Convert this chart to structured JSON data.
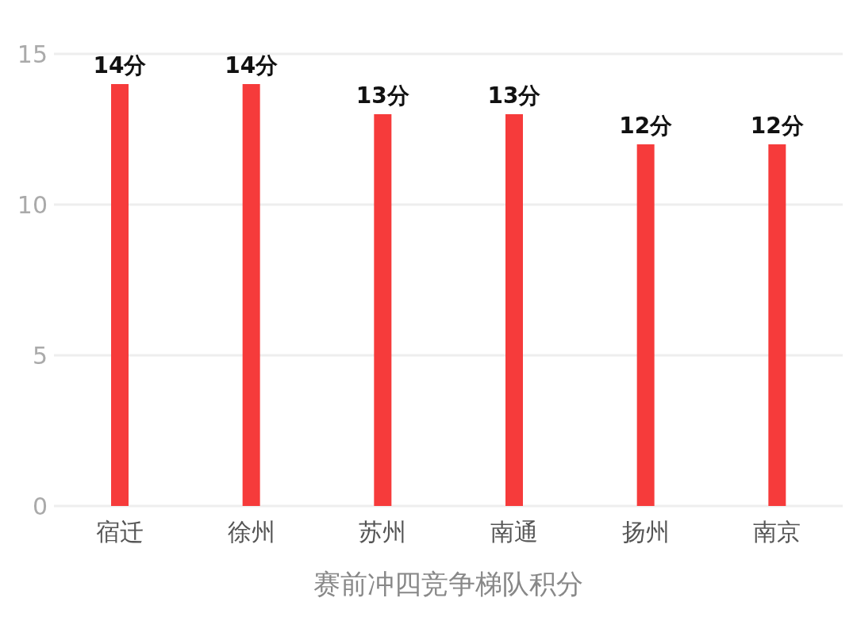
{
  "chart_data": {
    "type": "bar",
    "xlabel": "赛前冲四竞争梯队积分",
    "categories": [
      "宿迁",
      "徐州",
      "苏州",
      "南通",
      "扬州",
      "南京"
    ],
    "values": [
      14,
      14,
      13,
      13,
      12,
      12
    ],
    "value_labels": [
      "14分",
      "14分",
      "13分",
      "13分",
      "12分",
      "12分"
    ],
    "color": "#f63b3b",
    "ylim": [
      0,
      15
    ],
    "yticks": [
      0,
      5,
      10,
      15
    ],
    "grid": "y"
  }
}
